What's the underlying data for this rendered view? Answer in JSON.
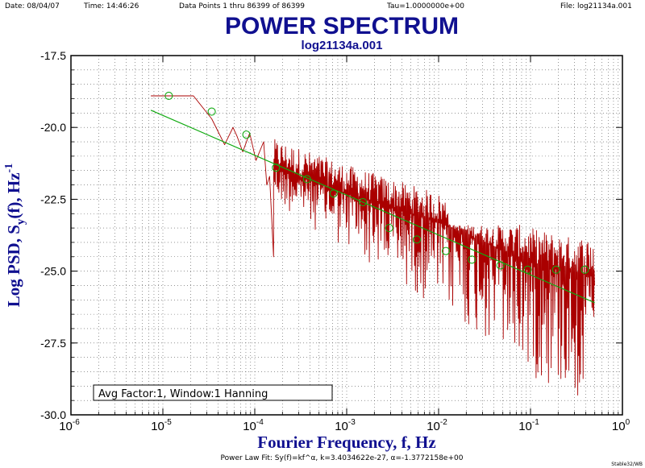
{
  "header": {
    "date": "Date: 08/04/07",
    "time": "Time: 14:46:26",
    "points": "Data Points 1 thru 86399 of 86399",
    "tau": "Tau=1.0000000e+00",
    "file": "File: log21134a.001"
  },
  "footer": {
    "fit": "Power Law Fit: Sy(f)=kf^α, k=3.4034622e-27, α=-1.3772158e+00",
    "credit": "Stable32/WB"
  },
  "chart_data": {
    "type": "line",
    "title": "POWER SPECTRUM",
    "subtitle": "log21134a.001",
    "xlabel": "Fourier Frequency, f, Hz",
    "ylabel_main": "Log PSD, S",
    "ylabel_sub": "y",
    "ylabel_mid": "(f), Hz",
    "ylabel_sup": "-1",
    "x_scale": "log",
    "xlim": [
      1e-06,
      1
    ],
    "x_ticks": [
      {
        "base": "10",
        "exp": "-6"
      },
      {
        "base": "10",
        "exp": "-5"
      },
      {
        "base": "10",
        "exp": "-4"
      },
      {
        "base": "10",
        "exp": "-3"
      },
      {
        "base": "10",
        "exp": "-2"
      },
      {
        "base": "10",
        "exp": "-1"
      },
      {
        "base": "10",
        "exp": "0"
      }
    ],
    "ylim": [
      -30.0,
      -17.5
    ],
    "y_ticks": [
      "-17.5",
      "-20.0",
      "-22.5",
      "-25.0",
      "-27.5",
      "-30.0"
    ],
    "grid": true,
    "legend_box": "Avg Factor:1, Window:1 Hanning",
    "colors": {
      "spectrum": "#aa0000",
      "fit": "#11aa11",
      "text": "#101090"
    },
    "series": [
      {
        "kind": "spectrum",
        "x_range": [
          1.16e-05,
          0.5
        ],
        "low_freq_envelope": [
          {
            "x": 7.4e-06,
            "y": -18.9
          },
          {
            "x": 2.15e-05,
            "y": -18.9
          },
          {
            "x": 3.4e-05,
            "y": -19.7
          },
          {
            "x": 4.7e-05,
            "y": -20.6
          },
          {
            "x": 5.8e-05,
            "y": -20.0
          },
          {
            "x": 6.4e-05,
            "y": -20.3
          },
          {
            "x": 7.4e-05,
            "y": -20.85
          },
          {
            "x": 8.8e-05,
            "y": -20.2
          },
          {
            "x": 0.000103,
            "y": -21.15
          },
          {
            "x": 0.000125,
            "y": -20.5
          },
          {
            "x": 0.000135,
            "y": -22.0
          },
          {
            "x": 0.000145,
            "y": -21.7
          },
          {
            "x": 0.00016,
            "y": -24.5
          }
        ],
        "median_trend": [
          {
            "x": 0.00016,
            "y": -21.4
          },
          {
            "x": 0.001,
            "y": -22.3
          },
          {
            "x": 0.01,
            "y": -23.3
          },
          {
            "x": 0.1,
            "y": -24.7
          },
          {
            "x": 0.5,
            "y": -25.2
          }
        ],
        "upper_envelope": -23.8,
        "lower_floor": -29.8
      },
      {
        "kind": "fit",
        "points": [
          {
            "x": 7.4e-06,
            "y": -19.4
          },
          {
            "x": 0.5,
            "y": -26.1
          }
        ]
      },
      {
        "kind": "averages",
        "points": [
          {
            "x": 1.16e-05,
            "y": -18.9
          },
          {
            "x": 3.4e-05,
            "y": -19.45
          },
          {
            "x": 8.1e-05,
            "y": -20.25
          },
          {
            "x": 0.00017,
            "y": -21.4
          },
          {
            "x": 0.00037,
            "y": -21.8
          },
          {
            "x": 0.00072,
            "y": -22.3
          },
          {
            "x": 0.0015,
            "y": -22.6
          },
          {
            "x": 0.0029,
            "y": -23.5
          },
          {
            "x": 0.0058,
            "y": -23.9
          },
          {
            "x": 0.012,
            "y": -24.3
          },
          {
            "x": 0.023,
            "y": -24.6
          },
          {
            "x": 0.047,
            "y": -24.8
          },
          {
            "x": 0.093,
            "y": -24.95
          },
          {
            "x": 0.19,
            "y": -24.95
          },
          {
            "x": 0.39,
            "y": -24.95
          }
        ]
      }
    ]
  }
}
